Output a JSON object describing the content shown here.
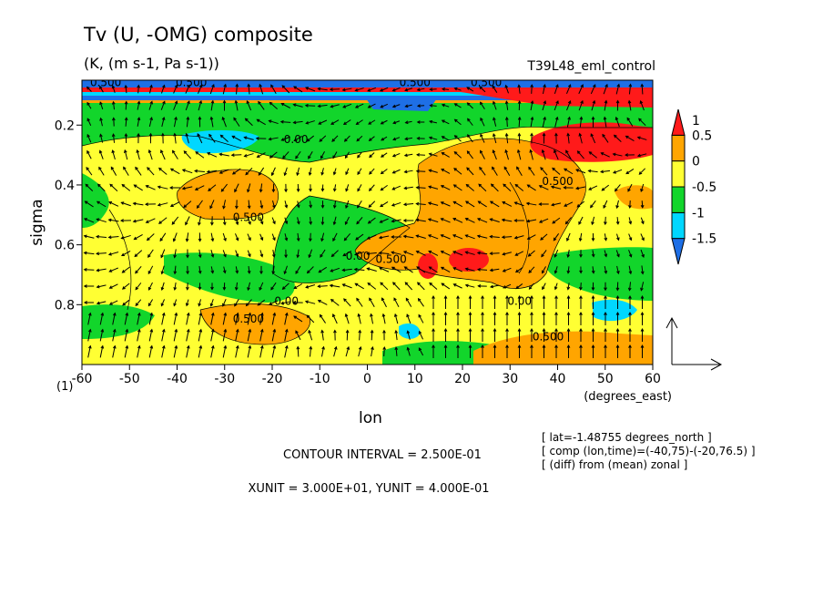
{
  "chart_data": {
    "type": "contour",
    "title": "Tv (U, -OMG) composite",
    "subtitle": "(K, (m s-1, Pa s-1))",
    "run_label": "T39L48_eml_control",
    "xlabel": "lon",
    "x_units_label": "(degrees_east)",
    "ylabel": "sigma",
    "panel_index": "(1)",
    "xlim": [
      -60,
      60
    ],
    "ylim": [
      1.0,
      0.05
    ],
    "x_ticks": [
      -60,
      -50,
      -40,
      -30,
      -20,
      -10,
      0,
      10,
      20,
      30,
      40,
      50,
      60
    ],
    "x_tick_labels": [
      "-60",
      "-50",
      "-40",
      "-30",
      "-20",
      "-10",
      "0",
      "10",
      "20",
      "30",
      "40",
      "50",
      "60"
    ],
    "y_ticks": [
      0.2,
      0.4,
      0.6,
      0.8
    ],
    "y_tick_labels": [
      "0.2",
      "0.4",
      "0.6",
      "0.8"
    ],
    "colorbar": {
      "levels": [
        -1.5,
        -1,
        -0.5,
        0,
        0.5,
        1
      ],
      "labels": [
        "-1.5",
        "-1",
        "-0.5",
        "0",
        "0.5",
        "1"
      ],
      "colors": [
        "#1e6fe6",
        "#00d7ff",
        "#12d52b",
        "#ffff33",
        "#ffa500",
        "#ff1a1a"
      ]
    },
    "contour_labels": [
      {
        "text": "0.500",
        "lon": -25,
        "sigma": 0.52
      },
      {
        "text": "0.00",
        "lon": -15,
        "sigma": 0.26
      },
      {
        "text": "0.00",
        "lon": -2,
        "sigma": 0.65
      },
      {
        "text": "0.500",
        "lon": 5,
        "sigma": 0.66
      },
      {
        "text": "0.500",
        "lon": 40,
        "sigma": 0.4
      },
      {
        "text": "0.00",
        "lon": -17,
        "sigma": 0.8
      },
      {
        "text": "0.500",
        "lon": -25,
        "sigma": 0.86
      },
      {
        "text": "0.00",
        "lon": 32,
        "sigma": 0.8
      },
      {
        "text": "0.500",
        "lon": 38,
        "sigma": 0.92
      },
      {
        "text": "0.500",
        "lon": -55,
        "sigma": 0.07
      },
      {
        "text": "0.500",
        "lon": -37,
        "sigma": 0.07
      },
      {
        "text": "0.500",
        "lon": 10,
        "sigma": 0.07
      },
      {
        "text": "0.500",
        "lon": 25,
        "sigma": 0.07
      }
    ],
    "vector_reference": {
      "xunit": "3.000E+01",
      "yunit": "4.000E-01"
    },
    "contour_interval": "CONTOUR INTERVAL = 2.500E-01",
    "unit_text": "XUNIT = 3.000E+01, YUNIT = 4.000E-01",
    "info_lines": [
      "[ lat=-1.48755 degrees_north ]",
      "[ comp (lon,time)=(-40,75)-(-20,76.5) ]",
      "[ (diff) from (mean) zonal ]"
    ]
  }
}
